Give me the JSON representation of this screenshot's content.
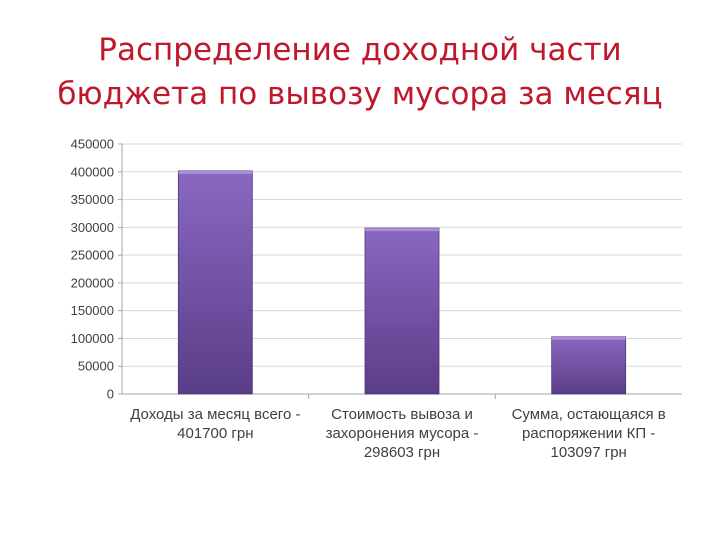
{
  "title": {
    "line1": "Распределение доходной части",
    "line2": "бюджета по вывозу мусора за месяц"
  },
  "chart_data": {
    "type": "bar",
    "categories": [
      [
        "Доходы за месяц всего -",
        "401700 грн"
      ],
      [
        "Стоимость вывоза и",
        "захоронения мусора -",
        "298603 грн"
      ],
      [
        "Сумма, остающаяся в",
        "распоряжении КП -",
        "103097 грн"
      ]
    ],
    "values": [
      401700,
      298603,
      103097
    ],
    "ylim": [
      0,
      450000
    ],
    "yticks": [
      "0",
      "50000",
      "100000",
      "150000",
      "200000",
      "250000",
      "300000",
      "350000",
      "400000",
      "450000"
    ],
    "grid": true,
    "legend": "none",
    "colors": {
      "bar_light": "#8a68c2",
      "bar_dark": "#5a3d87",
      "grid": "#d9d9d9",
      "axis_text": "#404040",
      "title": "#c0182b"
    }
  }
}
